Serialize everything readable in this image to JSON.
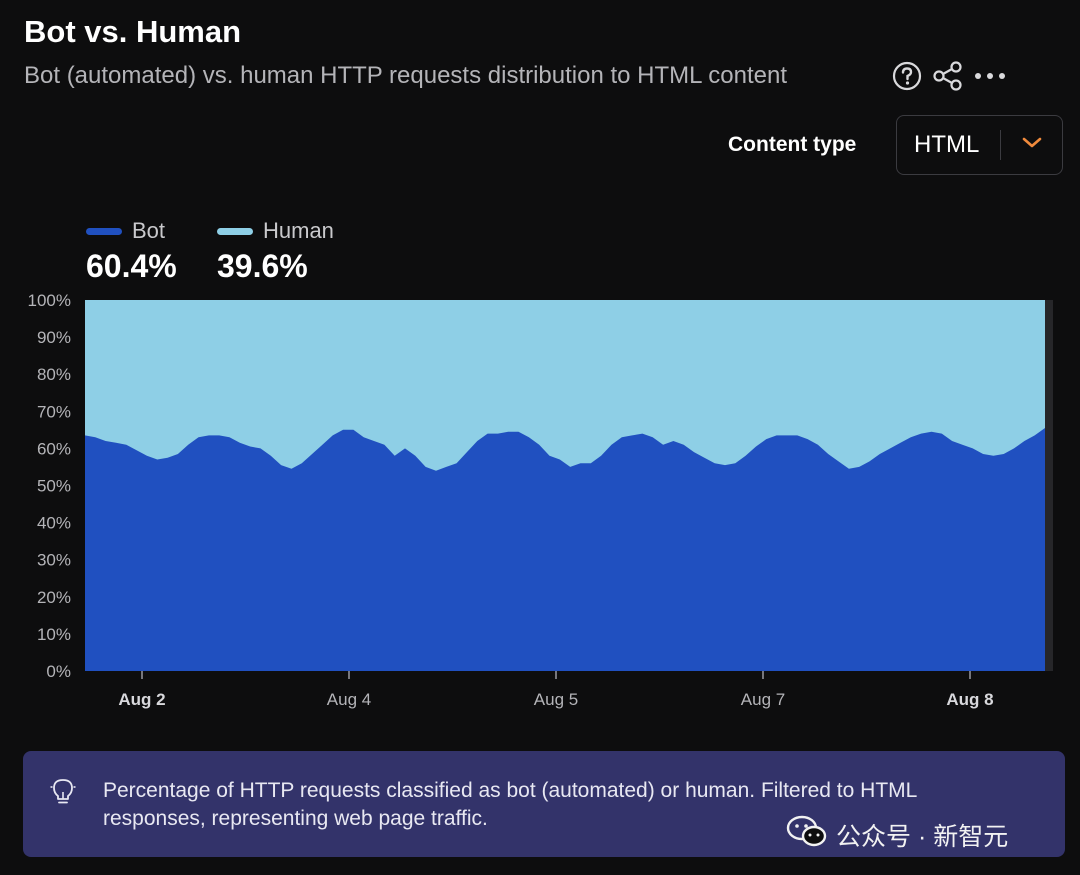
{
  "header": {
    "title": "Bot vs. Human",
    "subtitle": "Bot (automated) vs. human HTTP requests distribution to HTML content"
  },
  "controls": {
    "content_type_label": "Content type",
    "content_type_value": "HTML"
  },
  "icons": [
    "help-icon",
    "share-icon",
    "more-icon",
    "chevron-down-icon",
    "lightbulb-icon",
    "wechat-icon"
  ],
  "colors": {
    "bot": "#2050c0",
    "human": "#8ecfe6",
    "accent": "#f08a3c"
  },
  "legend": [
    {
      "name": "Bot",
      "value": "60.4%"
    },
    {
      "name": "Human",
      "value": "39.6%"
    }
  ],
  "chart_data": {
    "type": "area",
    "stacked": true,
    "x_ticks": [
      {
        "label": "Aug 2",
        "bold": true
      },
      {
        "label": "Aug 4",
        "bold": false
      },
      {
        "label": "Aug 5",
        "bold": false
      },
      {
        "label": "Aug 7",
        "bold": false
      },
      {
        "label": "Aug 8",
        "bold": true
      }
    ],
    "y_ticks": [
      "0%",
      "10%",
      "20%",
      "30%",
      "40%",
      "50%",
      "60%",
      "70%",
      "80%",
      "90%",
      "100%"
    ],
    "ylim": [
      0,
      100
    ],
    "series": [
      {
        "name": "Bot",
        "values": [
          63.5,
          63,
          62,
          61.5,
          61,
          59.5,
          58,
          57,
          57.5,
          58.5,
          61,
          63,
          63.5,
          63.5,
          63,
          61.5,
          60.5,
          60,
          58,
          55.5,
          54.5,
          56,
          58.5,
          61,
          63.5,
          65,
          65,
          63,
          62,
          61,
          58,
          60,
          58,
          55,
          54,
          55,
          56,
          59,
          62,
          64,
          64,
          64.5,
          64.5,
          63,
          61,
          58,
          57,
          55,
          56,
          56,
          58,
          61,
          63,
          63.5,
          64,
          63,
          61,
          62,
          61,
          59,
          57.5,
          56,
          55.5,
          56,
          58,
          60.5,
          62.5,
          63.5,
          63.5,
          63.5,
          62.5,
          61,
          58.5,
          56.5,
          54.5,
          55,
          56.5,
          58.5,
          60,
          61.5,
          63,
          64,
          64.5,
          64,
          62,
          61,
          60,
          58.5,
          58,
          58.5,
          60,
          62,
          63.5,
          65.5
        ]
      },
      {
        "name": "Human",
        "values": [
          36.5,
          37,
          38,
          38.5,
          39,
          40.5,
          42,
          43,
          42.5,
          41.5,
          39,
          37,
          36.5,
          36.5,
          37,
          38.5,
          39.5,
          40,
          42,
          44.5,
          45.5,
          44,
          41.5,
          39,
          36.5,
          35,
          35,
          37,
          38,
          39,
          42,
          40,
          42,
          45,
          46,
          45,
          44,
          41,
          38,
          36,
          36,
          35.5,
          35.5,
          37,
          39,
          42,
          43,
          45,
          44,
          44,
          42,
          39,
          37,
          36.5,
          36,
          37,
          39,
          38,
          39,
          41,
          42.5,
          44,
          44.5,
          44,
          42,
          39.5,
          37.5,
          36.5,
          36.5,
          36.5,
          37.5,
          39,
          41.5,
          43.5,
          45.5,
          45,
          43.5,
          41.5,
          40,
          38.5,
          37,
          36,
          35.5,
          36,
          38,
          39,
          40,
          41.5,
          42,
          41.5,
          40,
          38,
          36.5,
          34.5
        ]
      }
    ]
  },
  "info": {
    "text": "Percentage of HTTP requests classified as bot (automated) or human. Filtered to HTML responses, representing web page traffic."
  },
  "watermark": {
    "text": "公众号 · 新智元"
  }
}
